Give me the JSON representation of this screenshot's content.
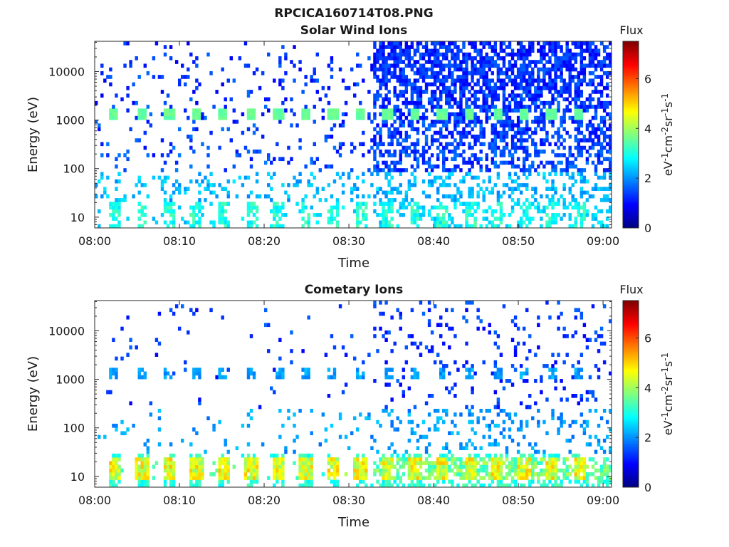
{
  "figure": {
    "title": "RPCICA160714T08.PNG"
  },
  "chart_data": [
    {
      "type": "heatmap",
      "title": "Solar Wind Ions",
      "xlabel": "Time",
      "ylabel": "Energy (eV)",
      "x_ticks": [
        "08:00",
        "08:10",
        "08:20",
        "08:30",
        "08:40",
        "08:50",
        "09:00"
      ],
      "x_range": [
        "08:00",
        "09:01"
      ],
      "y_scale": "log",
      "y_ticks": [
        10,
        100,
        1000,
        10000
      ],
      "y_tick_labels": [
        "10",
        "100",
        "1000",
        "10000"
      ],
      "y_range": [
        6,
        42000
      ],
      "colorbar": {
        "title": "Flux",
        "label": "eV-1cm-2sr-1s-1",
        "ticks": [
          0,
          2,
          4,
          6
        ],
        "range": [
          0,
          7.5
        ],
        "colormap": "jet"
      },
      "pattern": {
        "sweep_minutes": [
          2.3,
          5.6,
          8.8,
          12.0,
          15.2,
          18.5,
          21.7,
          24.9,
          28.1,
          31.4,
          34.6,
          37.8,
          41.0,
          44.3,
          47.5,
          50.7,
          53.9,
          57.2
        ],
        "band_energy_eV": 1300,
        "band_flux": 3.4,
        "band_start_time": "08:00",
        "transition_time": "08:33"
      }
    },
    {
      "type": "heatmap",
      "title": "Cometary Ions",
      "xlabel": "Time",
      "ylabel": "Energy (eV)",
      "x_ticks": [
        "08:00",
        "08:10",
        "08:20",
        "08:30",
        "08:40",
        "08:50",
        "09:00"
      ],
      "x_range": [
        "08:00",
        "09:01"
      ],
      "y_scale": "log",
      "y_ticks": [
        10,
        100,
        1000,
        10000
      ],
      "y_tick_labels": [
        "10",
        "100",
        "1000",
        "10000"
      ],
      "y_range": [
        6,
        42000
      ],
      "colorbar": {
        "title": "Flux",
        "label": "eV-1cm-2sr-1s-1",
        "ticks": [
          0,
          2,
          4,
          6
        ],
        "range": [
          0,
          7.5
        ],
        "colormap": "jet"
      },
      "pattern": {
        "sweep_minutes": [
          2.3,
          5.6,
          8.8,
          12.0,
          15.2,
          18.5,
          21.7,
          24.9,
          28.1,
          31.4,
          34.6,
          37.8,
          41.0,
          44.3,
          47.5,
          50.7,
          53.9,
          57.2
        ],
        "low_energy_band_eV": [
          8,
          25
        ],
        "low_energy_peak_flux": 5.2,
        "transition_time": "08:33"
      }
    }
  ]
}
